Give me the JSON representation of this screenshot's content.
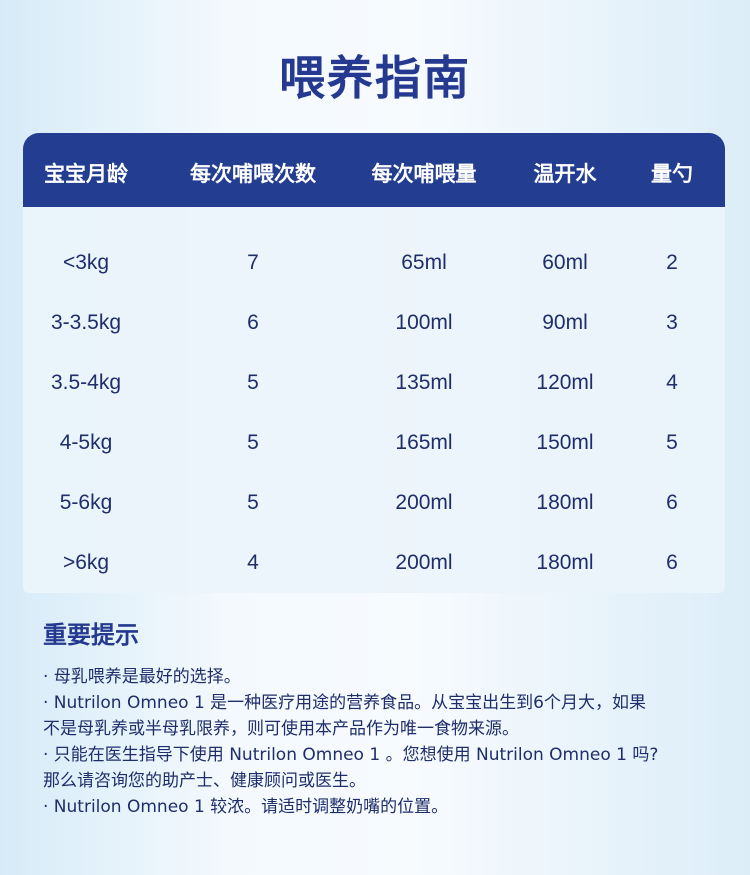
{
  "title": "喂养指南",
  "table": {
    "headers": [
      "宝宝月龄",
      "每次哺喂次数",
      "每次哺喂量",
      "温开水",
      "量勺"
    ],
    "rows": [
      [
        "<3kg",
        "7",
        "65ml",
        "60ml",
        "2"
      ],
      [
        "3-3.5kg",
        "6",
        "100ml",
        "90ml",
        "3"
      ],
      [
        "3.5-4kg",
        "5",
        "135ml",
        "120ml",
        "4"
      ],
      [
        "4-5kg",
        "5",
        "165ml",
        "150ml",
        "5"
      ],
      [
        "5-6kg",
        "5",
        "200ml",
        "180ml",
        "6"
      ],
      [
        ">6kg",
        "4",
        "200ml",
        "180ml",
        "6"
      ]
    ]
  },
  "notes": {
    "heading": "重要提示",
    "lines": [
      "· 母乳喂养是最好的选择。",
      "· Nutrilon Omneo 1 是一种医疗用途的营养食品。从宝宝出生到6个月大，如果",
      "不是母乳养或半母乳限养，则可使用本产品作为唯一食物来源。",
      "· 只能在医生指导下使用 Nutrilon Omneo 1 。您想使用 Nutrilon Omneo 1 吗?",
      "那么请咨询您的助产士、健康顾问或医生。",
      "·  Nutrilon Omneo 1 较浓。请适时调整奶嘴的位置。"
    ]
  },
  "colors": {
    "header_bg": "#233d91",
    "title": "#24398f",
    "text": "#1f2d6b"
  }
}
